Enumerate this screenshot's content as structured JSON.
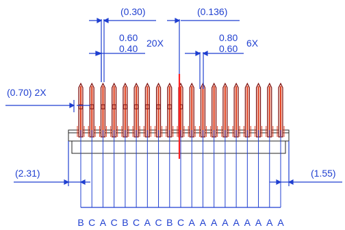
{
  "dimensions": {
    "top_left_ref": "(0.30)",
    "top_right_ref": "(0.136)",
    "pitch_left_upper": "0.60",
    "pitch_left_lower": "0.40",
    "pitch_left_count": "20X",
    "pitch_right_upper": "0.80",
    "pitch_right_lower": "0.60",
    "pitch_right_count": "6X",
    "side_ref_left": "(0.70) 2X",
    "outer_left": "(2.31)",
    "outer_right": "(1.55)"
  },
  "pin_labels": [
    "B",
    "C",
    "A",
    "C",
    "B",
    "C",
    "A",
    "C",
    "B",
    "C",
    "A",
    "A",
    "A",
    "A",
    "A",
    "A",
    "A",
    "A",
    "A"
  ],
  "colors": {
    "dimension": "#1f3fd0",
    "pin_outline": "#7a0e0e",
    "pin_fill": "#e04020",
    "centerline": "#ff2020",
    "body": "#202020"
  }
}
